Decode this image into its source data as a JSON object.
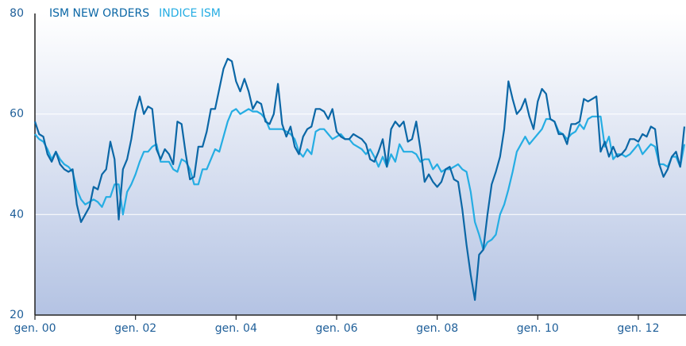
{
  "chart_data": {
    "type": "line",
    "categories": [
      "gen. 00",
      null,
      null,
      null,
      null,
      null,
      null,
      null,
      null,
      null,
      null,
      null,
      null,
      null,
      null,
      null,
      null,
      null,
      null,
      null,
      null,
      null,
      null,
      null,
      "gen. 02",
      null,
      null,
      null,
      null,
      null,
      null,
      null,
      null,
      null,
      null,
      null,
      null,
      null,
      null,
      null,
      null,
      null,
      null,
      null,
      null,
      null,
      null,
      null,
      "gen. 04",
      null,
      null,
      null,
      null,
      null,
      null,
      null,
      null,
      null,
      null,
      null,
      null,
      null,
      null,
      null,
      null,
      null,
      null,
      null,
      null,
      null,
      null,
      null,
      "gen. 06",
      null,
      null,
      null,
      null,
      null,
      null,
      null,
      null,
      null,
      null,
      null,
      null,
      null,
      null,
      null,
      null,
      null,
      null,
      null,
      null,
      null,
      null,
      null,
      "gen. 08",
      null,
      null,
      null,
      null,
      null,
      null,
      null,
      null,
      null,
      null,
      null,
      null,
      null,
      null,
      null,
      null,
      null,
      null,
      null,
      null,
      null,
      null,
      null,
      "gen. 10",
      null,
      null,
      null,
      null,
      null,
      null,
      null,
      null,
      null,
      null,
      null,
      null,
      null,
      null,
      null,
      null,
      null,
      null,
      null,
      null,
      null,
      null,
      null,
      "gen. 12",
      null,
      null,
      null,
      null,
      null,
      null,
      null,
      null,
      null,
      null,
      null
    ],
    "series": [
      {
        "name": "ISM NEW ORDERS",
        "color": "#0b67a6",
        "values": [
          58.5,
          56,
          55.5,
          52,
          50.5,
          52.5,
          50,
          49,
          48.5,
          49,
          42,
          38.5,
          40,
          41.5,
          45.5,
          45,
          48,
          49,
          54.5,
          51,
          39,
          49,
          51,
          55,
          60.5,
          63.5,
          60,
          61.5,
          61,
          53,
          51,
          53,
          52,
          50,
          58.5,
          58,
          52,
          47,
          47.5,
          53.5,
          53.5,
          56.5,
          61,
          61,
          65,
          69,
          71,
          70.5,
          66.5,
          64.5,
          67,
          64.5,
          61,
          62.5,
          62,
          58.5,
          58,
          60,
          66,
          58,
          55.5,
          57.5,
          53.5,
          52,
          55.5,
          57,
          57.5,
          61,
          61,
          60.5,
          59,
          61,
          56.5,
          55.5,
          55,
          55,
          56,
          55.5,
          55,
          54,
          51,
          50.5,
          52.5,
          55,
          49.5,
          57,
          58.5,
          57.5,
          58.5,
          54.5,
          55,
          58.5,
          53,
          46.5,
          48,
          46.5,
          45.5,
          46.5,
          49,
          49.5,
          47,
          46.5,
          41,
          34,
          28,
          23,
          32,
          33,
          40,
          46,
          48.5,
          51.5,
          57,
          66.5,
          63,
          60,
          61,
          63,
          59.5,
          57,
          62.5,
          65,
          64,
          59,
          58.5,
          56,
          56,
          54,
          58,
          58,
          58.5,
          63,
          62.5,
          63,
          63.5,
          52.5,
          54.5,
          51.5,
          53.5,
          51.5,
          52,
          53,
          55,
          55,
          54.5,
          56,
          55.5,
          57.5,
          57,
          50,
          47.5,
          49,
          51.5,
          52.5,
          49.5,
          57.5
        ]
      },
      {
        "name": "INDICE ISM",
        "color": "#25ade3",
        "values": [
          56,
          55,
          54.5,
          53,
          51,
          52.5,
          51,
          50,
          49.5,
          48.5,
          45,
          43,
          42,
          42.5,
          43,
          42.5,
          41.5,
          43.5,
          43.5,
          46,
          46,
          40,
          44.5,
          46,
          48,
          50.5,
          52.5,
          52.5,
          53.5,
          54,
          50.5,
          50.5,
          50.5,
          49,
          48.5,
          51,
          50.5,
          49,
          46,
          46,
          49,
          49,
          51,
          53,
          52.5,
          55.5,
          58.5,
          60.5,
          61,
          60,
          60.5,
          61,
          60.5,
          60.5,
          60,
          59,
          57,
          57,
          57,
          57,
          56.5,
          56,
          55,
          52.5,
          51.5,
          53,
          52,
          56.5,
          57,
          57,
          56,
          55,
          55.5,
          56,
          55,
          55,
          54,
          53.5,
          53,
          52,
          53,
          51.5,
          49.5,
          51.5,
          49.5,
          52,
          50.5,
          54,
          52.5,
          52.5,
          52.5,
          52,
          50.5,
          51,
          51,
          49,
          50,
          48.5,
          49,
          49,
          49.5,
          50,
          49,
          48.5,
          44.5,
          38.5,
          36,
          33,
          34.5,
          35,
          36,
          40,
          42,
          45,
          48.5,
          52.5,
          54,
          55.5,
          54,
          55,
          56,
          57,
          59,
          59,
          58.5,
          56.5,
          56,
          55,
          56,
          56.5,
          58,
          57,
          59,
          59.5,
          59.5,
          59.5,
          53.5,
          55.5,
          51,
          52,
          52,
          51.5,
          52,
          53,
          54,
          52,
          53,
          54,
          53.5,
          50,
          50,
          49.5,
          51.5,
          51.5,
          49.5,
          54
        ]
      }
    ],
    "ylim": [
      20,
      80
    ],
    "yticks": [
      20,
      40,
      60,
      80
    ],
    "grid": true
  }
}
